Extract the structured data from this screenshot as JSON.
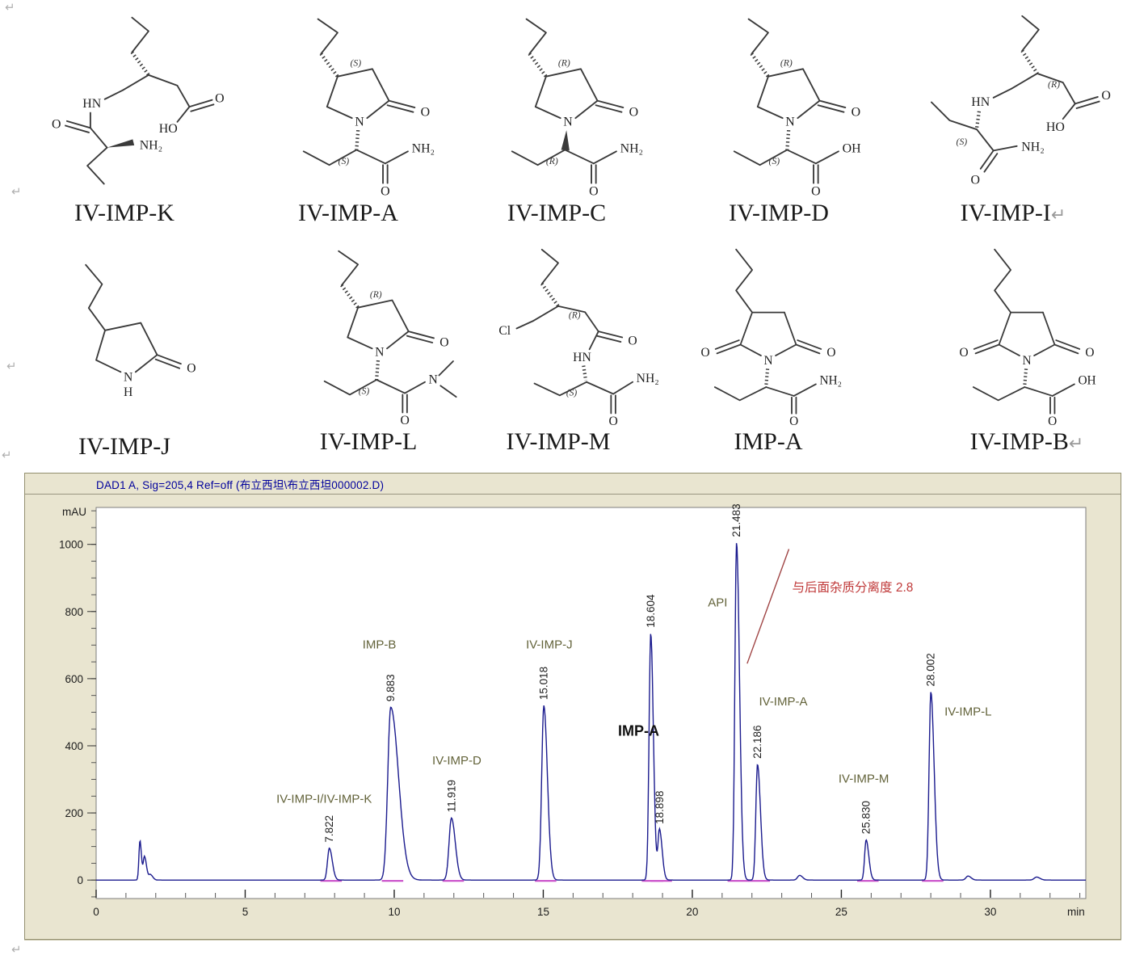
{
  "page": {
    "return_mark": "↵"
  },
  "structures": {
    "row1": [
      {
        "id": "IV-IMP-K",
        "label": "IV-IMP-K",
        "atoms": {
          "hn": "HN",
          "o_amide": "O",
          "nh2": "NH₂",
          "ho": "HO",
          "o_acid": "O"
        }
      },
      {
        "id": "IV-IMP-A",
        "label": "IV-IMP-A",
        "atoms": {
          "stereo_ring": "(S)",
          "n": "N",
          "o_ring": "O",
          "stereo_chain": "(S)",
          "nh2": "NH₂",
          "o_amide": "O"
        }
      },
      {
        "id": "IV-IMP-C",
        "label": "IV-IMP-C",
        "atoms": {
          "stereo_ring": "(R)",
          "n": "N",
          "o_ring": "O",
          "stereo_chain": "(R)",
          "nh2": "NH₂",
          "o_amide": "O"
        }
      },
      {
        "id": "IV-IMP-D",
        "label": "IV-IMP-D",
        "atoms": {
          "stereo_ring": "(R)",
          "n": "N",
          "o_ring": "O",
          "stereo_chain": "(S)",
          "oh": "OH",
          "o_acid": "O"
        }
      },
      {
        "id": "IV-IMP-I",
        "label": "IV-IMP-I",
        "trailing": "↵",
        "atoms": {
          "stereo_r": "(R)",
          "hn": "HN",
          "stereo_s": "(S)",
          "o_amide": "O",
          "nh2": "NH₂",
          "ho": "HO",
          "o_acid": "O"
        }
      }
    ],
    "row2": [
      {
        "id": "IV-IMP-J",
        "label": "IV-IMP-J",
        "atoms": {
          "o_ring": "O",
          "n": "N",
          "h": "H"
        }
      },
      {
        "id": "IV-IMP-L",
        "label": "IV-IMP-L",
        "atoms": {
          "stereo_ring": "(R)",
          "n": "N",
          "o_ring": "O",
          "stereo_chain": "(S)",
          "n_amide": "N",
          "o_amide": "O"
        }
      },
      {
        "id": "IV-IMP-M",
        "label": "IV-IMP-M",
        "atoms": {
          "cl": "Cl",
          "stereo_r": "(R)",
          "o_acyl": "O",
          "hn": "HN",
          "stereo_s": "(S)",
          "nh2": "NH₂",
          "o_amide": "O"
        }
      },
      {
        "id": "IMP-A",
        "label": "IMP-A",
        "atoms": {
          "o_left": "O",
          "n": "N",
          "o_right": "O",
          "nh2": "NH₂",
          "o_amide": "O"
        }
      },
      {
        "id": "IV-IMP-B",
        "label": "IV-IMP-B",
        "trailing": "↵",
        "atoms": {
          "o_left": "O",
          "n": "N",
          "o_right": "O",
          "oh": "OH",
          "o_amide": "O"
        }
      }
    ]
  },
  "chart_data": {
    "type": "line",
    "title": "DAD1 A, Sig=205,4 Ref=off (布立西坦\\布立西坦000002.D)",
    "xlabel": "min",
    "ylabel": "mAU",
    "xlim": [
      0,
      33.2
    ],
    "ylim": [
      -55,
      1110
    ],
    "x_major_ticks": [
      0,
      5,
      10,
      15,
      20,
      25,
      30
    ],
    "y_major_ticks": [
      0,
      200,
      400,
      600,
      800,
      1000
    ],
    "x_minor_step": 1,
    "y_minor_step": 50,
    "grid": false,
    "trace_color": "#1b1b8e",
    "integration_color": "#cc55cc",
    "peaks": [
      {
        "rt": 1.47,
        "height_mAU": 118,
        "sig_l": 0.035,
        "sig_r": 0.05,
        "rt_label": null
      },
      {
        "rt": 1.62,
        "height_mAU": 70,
        "sig_l": 0.04,
        "sig_r": 0.07,
        "rt_label": null
      },
      {
        "rt": 1.82,
        "height_mAU": 16,
        "sig_l": 0.05,
        "sig_r": 0.08,
        "rt_label": null
      },
      {
        "rt": 7.822,
        "height_mAU": 95,
        "sig_l": 0.06,
        "sig_r": 0.1,
        "rt_label": "7.822"
      },
      {
        "rt": 9.883,
        "height_mAU": 515,
        "sig_l": 0.1,
        "sig_r": 0.26,
        "rt_label": "9.883"
      },
      {
        "rt": 11.919,
        "height_mAU": 185,
        "sig_l": 0.08,
        "sig_r": 0.13,
        "rt_label": "11.919"
      },
      {
        "rt": 15.018,
        "height_mAU": 520,
        "sig_l": 0.07,
        "sig_r": 0.12,
        "rt_label": "15.018"
      },
      {
        "rt": 18.604,
        "height_mAU": 735,
        "sig_l": 0.055,
        "sig_r": 0.09,
        "rt_label": "18.604"
      },
      {
        "rt": 18.898,
        "height_mAU": 150,
        "sig_l": 0.05,
        "sig_r": 0.09,
        "rt_label": "18.898"
      },
      {
        "rt": 21.483,
        "height_mAU": 1005,
        "sig_l": 0.055,
        "sig_r": 0.1,
        "rt_label": "21.483"
      },
      {
        "rt": 22.186,
        "height_mAU": 345,
        "sig_l": 0.055,
        "sig_r": 0.1,
        "rt_label": "22.186"
      },
      {
        "rt": 23.6,
        "height_mAU": 14,
        "sig_l": 0.07,
        "sig_r": 0.1,
        "rt_label": null
      },
      {
        "rt": 25.83,
        "height_mAU": 120,
        "sig_l": 0.05,
        "sig_r": 0.09,
        "rt_label": "25.830"
      },
      {
        "rt": 28.002,
        "height_mAU": 560,
        "sig_l": 0.06,
        "sig_r": 0.11,
        "rt_label": "28.002"
      },
      {
        "rt": 29.25,
        "height_mAU": 12,
        "sig_l": 0.07,
        "sig_r": 0.1,
        "rt_label": null
      },
      {
        "rt": 31.55,
        "height_mAU": 9,
        "sig_l": 0.08,
        "sig_r": 0.11,
        "rt_label": null
      }
    ],
    "name_labels": [
      {
        "text": "IV-IMP-I/IV-IMP-K",
        "t": 7.65,
        "mAU": 230,
        "bold": false
      },
      {
        "text": "IMP-B",
        "t": 9.5,
        "mAU": 690,
        "bold": false
      },
      {
        "text": "IV-IMP-D",
        "t": 12.1,
        "mAU": 345,
        "bold": false
      },
      {
        "text": "IV-IMP-J",
        "t": 15.2,
        "mAU": 690,
        "bold": false
      },
      {
        "text": "IMP-A",
        "t": 18.2,
        "mAU": 430,
        "bold": true
      },
      {
        "text": "API",
        "t": 20.85,
        "mAU": 815,
        "bold": false
      },
      {
        "text": "IV-IMP-A",
        "t": 23.05,
        "mAU": 520,
        "bold": false
      },
      {
        "text": "IV-IMP-M",
        "t": 25.75,
        "mAU": 290,
        "bold": false
      },
      {
        "text": "IV-IMP-L",
        "t": 29.25,
        "mAU": 490,
        "bold": false
      }
    ],
    "annotation": {
      "text": "与后面杂质分离度 2.8",
      "resolution_value": 2.8,
      "color": "#c03a3a",
      "line_color": "#a04545",
      "line_from": {
        "t": 21.84,
        "mAU": 645
      },
      "line_to": {
        "t": 23.24,
        "mAU": 986
      }
    }
  }
}
